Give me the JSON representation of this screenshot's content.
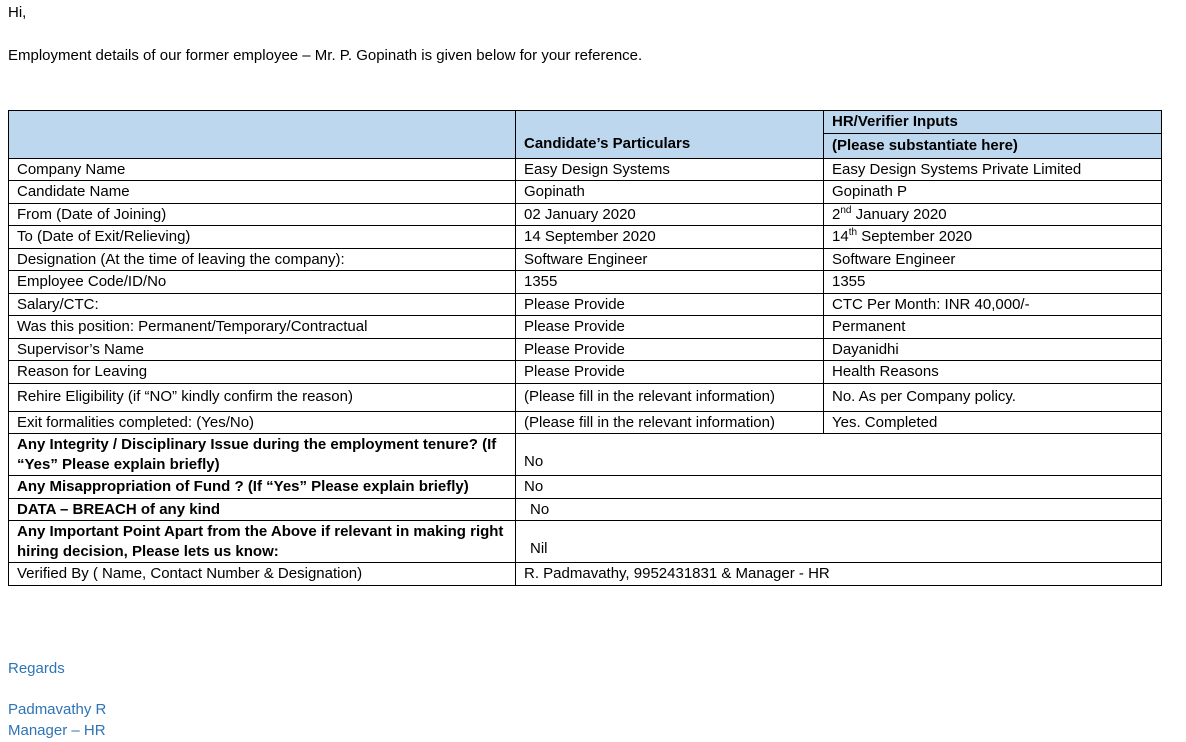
{
  "colors": {
    "header_fill": "#BDD7EE",
    "signature_blue": "#2E74B5",
    "border": "#000000",
    "background": "#FFFFFF"
  },
  "intro": {
    "greeting": "Hi,",
    "body": "Employment details of our former employee – Mr. P. Gopinath is given below for your reference."
  },
  "table": {
    "header": {
      "blank": "",
      "candidate": "Candidate’s Particulars",
      "hr_line1": "HR/Verifier Inputs",
      "hr_line2": "(Please substantiate here)"
    },
    "rows": [
      {
        "label": "Company Name",
        "candidate": "Easy Design Systems",
        "verifier": "Easy Design Systems Private Limited"
      },
      {
        "label": "Candidate Name",
        "candidate": "Gopinath",
        "verifier": "Gopinath P"
      },
      {
        "label": "From (Date of Joining)",
        "candidate": "02 January 2020",
        "v_base": "2",
        "v_sup": "nd",
        "v_rest": " January 2020"
      },
      {
        "label": "To (Date of Exit/Relieving)",
        "candidate": "14 September 2020",
        "v_base": "14",
        "v_sup": "th",
        "v_rest": " September 2020"
      },
      {
        "label": "Designation (At the time of leaving the company):",
        "candidate": "Software Engineer",
        "verifier": "Software Engineer"
      },
      {
        "label": "Employee Code/ID/No",
        "candidate": "1355",
        "verifier": "1355"
      },
      {
        "label": "Salary/CTC:",
        "candidate": "Please Provide",
        "verifier": "CTC Per Month: INR 40,000/-"
      },
      {
        "label": "Was this position: Permanent/Temporary/Contractual",
        "candidate": "Please Provide",
        "verifier": "Permanent"
      },
      {
        "label": "Supervisor’s Name",
        "candidate": "Please Provide",
        "verifier": "Dayanidhi"
      },
      {
        "label": "Reason for Leaving",
        "candidate": "Please Provide",
        "verifier": "Health Reasons"
      },
      {
        "label": "Rehire Eligibility (if “NO” kindly confirm the reason)",
        "candidate": "(Please fill in the relevant information)",
        "verifier": "No. As per Company policy."
      },
      {
        "label": "Exit formalities completed: (Yes/No)",
        "candidate": "(Please fill in the relevant information)",
        "verifier": "Yes. Completed"
      },
      {
        "label": "Any Integrity / Disciplinary Issue during the employment tenure? (If “Yes” Please explain briefly)",
        "merged": "No"
      },
      {
        "label": "Any Misappropriation of Fund ? (If “Yes” Please explain briefly)",
        "merged": "No"
      },
      {
        "label": "DATA – BREACH of any kind",
        "merged": "No"
      },
      {
        "label": "Any Important Point Apart from the Above if relevant in making right hiring decision, Please lets us know:",
        "merged": "Nil"
      },
      {
        "label": "Verified By ( Name, Contact Number & Designation)",
        "merged": "R. Padmavathy, 9952431831 & Manager - HR"
      }
    ]
  },
  "signature": {
    "regards": "Regards",
    "name": "Padmavathy R",
    "title": "Manager – HR"
  }
}
